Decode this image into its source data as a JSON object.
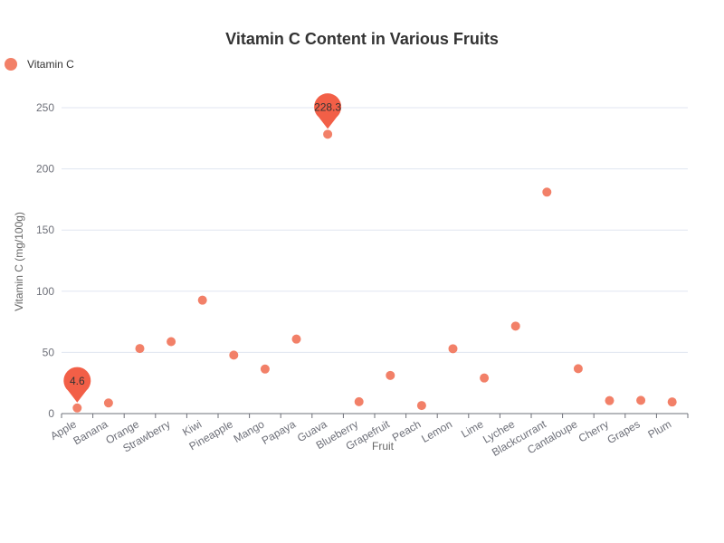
{
  "chart_data": {
    "type": "scatter",
    "title": "Vitamin C Content in Various Fruits",
    "xlabel": "Fruit",
    "ylabel": "Vitamin C (mg/100g)",
    "categories": [
      "Apple",
      "Banana",
      "Orange",
      "Strawberry",
      "Kiwi",
      "Pineapple",
      "Mango",
      "Papaya",
      "Guava",
      "Blueberry",
      "Grapefruit",
      "Peach",
      "Lemon",
      "Lime",
      "Lychee",
      "Blackcurrant",
      "Cantaloupe",
      "Cherry",
      "Grapes",
      "Plum"
    ],
    "series": [
      {
        "name": "Vitamin C",
        "values": [
          4.6,
          8.7,
          53.2,
          58.8,
          92.7,
          47.8,
          36.4,
          60.9,
          228.3,
          9.7,
          31.2,
          6.6,
          53,
          29.1,
          71.5,
          181,
          36.7,
          10.6,
          10.8,
          9.5
        ]
      }
    ],
    "ylim": [
      0,
      250
    ],
    "yticks": [
      0,
      50,
      100,
      150,
      200,
      250
    ],
    "grid": true,
    "legend_position": "top-left",
    "markers": [
      {
        "type": "min",
        "label": "4.6",
        "category": "Apple",
        "value": 4.6
      },
      {
        "type": "max",
        "label": "228.3",
        "category": "Guava",
        "value": 228.3
      }
    ],
    "colors": {
      "point": "#f28068",
      "marker": "#f25f47",
      "grid": "#e0e6f1",
      "axis": "#6e7079"
    }
  }
}
